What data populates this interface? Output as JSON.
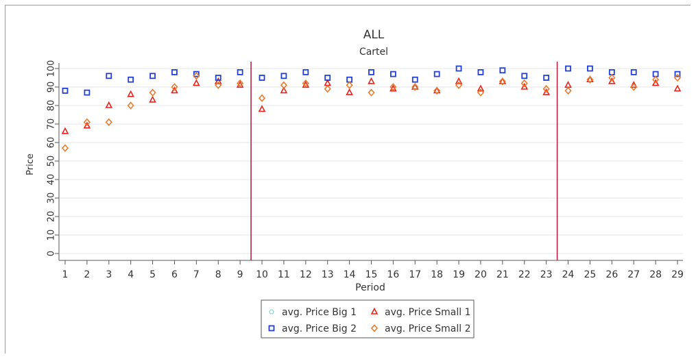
{
  "chart_data": {
    "type": "scatter",
    "title": "ALL",
    "subtitle": "Cartel",
    "xlabel": "Period",
    "ylabel": "Price",
    "x": [
      1,
      2,
      3,
      4,
      5,
      6,
      7,
      8,
      9,
      10,
      11,
      12,
      13,
      14,
      15,
      16,
      17,
      18,
      19,
      20,
      21,
      22,
      23,
      24,
      25,
      26,
      27,
      28,
      29
    ],
    "xlim": [
      1,
      29
    ],
    "ylim": [
      0,
      100
    ],
    "yticks": [
      0,
      10,
      20,
      30,
      40,
      50,
      60,
      70,
      80,
      90,
      100
    ],
    "vlines": [
      9.5,
      23.5
    ],
    "vline_color": "#b0163a",
    "grid": true,
    "legend_position": "bottom",
    "series": [
      {
        "name": "avg. Price Big 1",
        "marker": "circle",
        "color": "#8fd0e0",
        "values": []
      },
      {
        "name": "avg. Price Small 1",
        "marker": "triangle",
        "color": "#e8211b",
        "values": [
          66,
          69,
          80,
          86,
          83,
          88,
          92,
          93,
          91,
          78,
          88,
          91,
          92,
          87,
          93,
          89,
          90,
          88,
          93,
          89,
          93,
          90,
          87,
          91,
          94,
          93,
          91,
          92,
          89
        ]
      },
      {
        "name": "avg. Price Big 2",
        "marker": "square",
        "color": "#1f3fd8",
        "values": [
          88,
          87,
          96,
          94,
          96,
          98,
          97,
          95,
          98,
          95,
          96,
          98,
          95,
          94,
          98,
          97,
          94,
          97,
          100,
          98,
          99,
          96,
          95,
          100,
          100,
          98,
          98,
          97,
          97
        ]
      },
      {
        "name": "avg. Price Small 2",
        "marker": "diamond",
        "color": "#e87a2a",
        "values": [
          57,
          71,
          71,
          80,
          87,
          90,
          96,
          91,
          92,
          84,
          91,
          92,
          89,
          91,
          87,
          90,
          90,
          88,
          91,
          87,
          93,
          92,
          89,
          88,
          94,
          95,
          90,
          94,
          95
        ]
      }
    ]
  }
}
